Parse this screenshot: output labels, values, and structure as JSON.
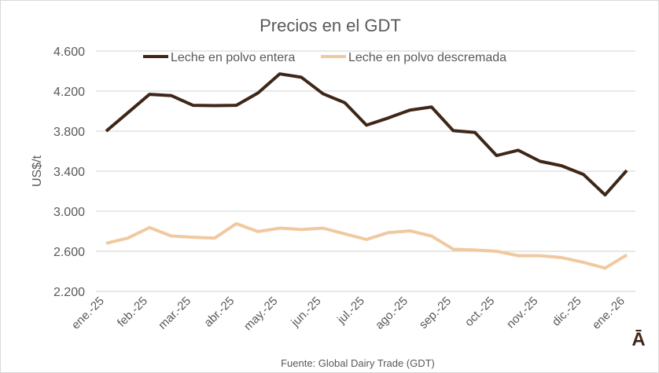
{
  "chart_data": {
    "type": "line",
    "title": "Precios en el GDT",
    "ylabel": "US$/t",
    "xlabel": "",
    "ylim": [
      2200,
      4600
    ],
    "yticks": [
      2200,
      2600,
      3000,
      3400,
      3800,
      4200,
      4600
    ],
    "ytick_labels": [
      "2.200",
      "2.600",
      "3.000",
      "3.400",
      "3.800",
      "4.200",
      "4.600"
    ],
    "x_tick_labels": [
      "ene.-25",
      "feb.-25",
      "mar.-25",
      "abr.-25",
      "may.-25",
      "jun.-25",
      "jul.-25",
      "ago.-25",
      "sep.-25",
      "oct.-25",
      "nov.-25",
      "dic.-25",
      "ene.-26"
    ],
    "grid": true,
    "legend_position": "top",
    "series": [
      {
        "name": "Leche en polvo entera",
        "color": "#3f2718",
        "values": [
          3800,
          3984,
          4168,
          4155,
          4058,
          4055,
          4058,
          4181,
          4372,
          4338,
          4173,
          4084,
          3860,
          3931,
          4010,
          4041,
          3805,
          3787,
          3556,
          3609,
          3499,
          3454,
          3368,
          3163,
          3407
        ]
      },
      {
        "name": "Leche en polvo descremada",
        "color": "#f0c9a0",
        "values": [
          2680,
          2732,
          2837,
          2753,
          2740,
          2732,
          2876,
          2797,
          2831,
          2818,
          2831,
          2774,
          2718,
          2786,
          2804,
          2752,
          2621,
          2613,
          2600,
          2556,
          2556,
          2537,
          2490,
          2432,
          2563
        ]
      }
    ],
    "source": "Fuente: Global Dairy Trade (GDT)"
  },
  "logo": {
    "text": "Ā",
    "color": "#3f2718"
  }
}
